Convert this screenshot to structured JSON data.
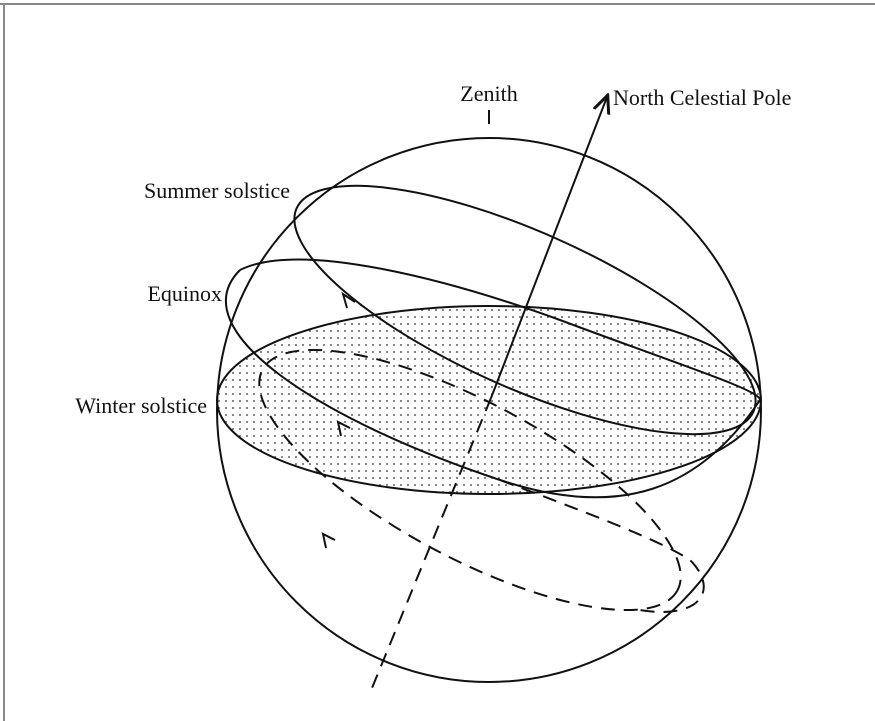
{
  "labels": {
    "zenith": "Zenith",
    "north_celestial_pole": "North Celestial Pole",
    "summer_solstice": "Summer solstice",
    "equinox": "Equinox",
    "winter_solstice": "Winter solstice"
  }
}
